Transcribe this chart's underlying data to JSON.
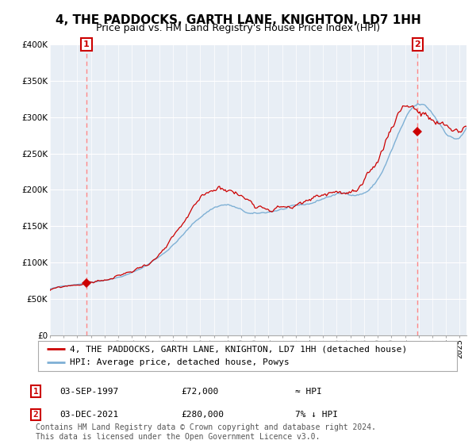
{
  "title": "4, THE PADDOCKS, GARTH LANE, KNIGHTON, LD7 1HH",
  "subtitle": "Price paid vs. HM Land Registry's House Price Index (HPI)",
  "ylim": [
    0,
    400000
  ],
  "xlim_start": 1995.0,
  "xlim_end": 2025.5,
  "background_color": "#ffffff",
  "plot_bg_color": "#e8eef5",
  "grid_color": "#ffffff",
  "transaction1": {
    "date_num": 1997.67,
    "price": 72000,
    "label": "1",
    "date_str": "03-SEP-1997",
    "price_str": "£72,000",
    "hpi_str": "≈ HPI"
  },
  "transaction2": {
    "date_num": 2021.92,
    "price": 280000,
    "label": "2",
    "date_str": "03-DEC-2021",
    "price_str": "£280,000",
    "hpi_str": "7% ↓ HPI"
  },
  "legend_line1": "4, THE PADDOCKS, GARTH LANE, KNIGHTON, LD7 1HH (detached house)",
  "legend_line2": "HPI: Average price, detached house, Powys",
  "footer": "Contains HM Land Registry data © Crown copyright and database right 2024.\nThis data is licensed under the Open Government Licence v3.0.",
  "line_color_red": "#cc0000",
  "line_color_blue": "#7eb0d5",
  "marker_color": "#cc0000",
  "dashed_color": "#ff8888",
  "annotation_box_color": "#cc0000",
  "title_fontsize": 11,
  "subtitle_fontsize": 9,
  "tick_fontsize": 7.5,
  "legend_fontsize": 8,
  "footer_fontsize": 7
}
